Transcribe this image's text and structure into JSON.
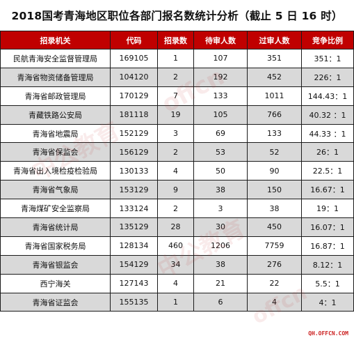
{
  "title": "2018国考青海地区职位各部门报名数统计分析（截止 5 日 16 时）",
  "headers": [
    "招录机关",
    "代码",
    "招录数",
    "待审人数",
    "过审人数",
    "竞争比例"
  ],
  "rows": [
    [
      "民航青海安全监督管理局",
      "169105",
      "1",
      "107",
      "351",
      "351：1"
    ],
    [
      "青海省物资储备管理局",
      "104120",
      "2",
      "192",
      "452",
      "226：1"
    ],
    [
      "青海省邮政管理局",
      "170129",
      "7",
      "133",
      "1011",
      "144.43：1"
    ],
    [
      "青藏铁路公安局",
      "181118",
      "19",
      "105",
      "766",
      "40.32 ：1"
    ],
    [
      "青海省地震局",
      "152129",
      "3",
      "69",
      "133",
      "44.33 ：1"
    ],
    [
      "青海省保监会",
      "156129",
      "2",
      "53",
      "52",
      "26：1"
    ],
    [
      "青海省出入境检疫检验局",
      "130133",
      "4",
      "50",
      "90",
      "22.5：1"
    ],
    [
      "青海省气象局",
      "153129",
      "9",
      "38",
      "150",
      "16.67：1"
    ],
    [
      "青海煤矿安全监察局",
      "133124",
      "2",
      "3",
      "38",
      "19：1"
    ],
    [
      "青海省统计局",
      "135129",
      "28",
      "30",
      "450",
      "16.07：1"
    ],
    [
      "青海省国家税务局",
      "128134",
      "460",
      "1206",
      "7759",
      "16.87：1"
    ],
    [
      "青海省银监会",
      "154129",
      "34",
      "38",
      "276",
      "8.12：1"
    ],
    [
      "西宁海关",
      "127143",
      "4",
      "21",
      "22",
      "5.5：1"
    ],
    [
      "青海省证监会",
      "155135",
      "1",
      "6",
      "4",
      "4：1"
    ]
  ],
  "watermark_text": "中公教育",
  "watermark_latin": "offcn",
  "site": "QH.OFFCN.COM",
  "colors": {
    "header_bg": "#c00000",
    "stripe": "#d9d9d9"
  }
}
